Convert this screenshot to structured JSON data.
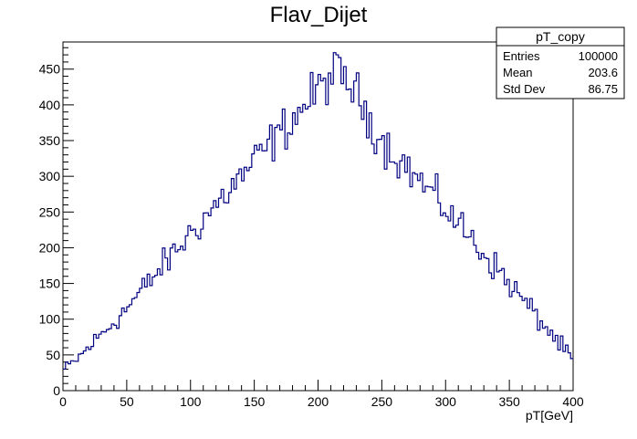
{
  "chart_data": {
    "type": "histogram",
    "title": "Flav_Dijet",
    "xlabel": "pT[GeV]",
    "ylabel": "",
    "xlim": [
      0,
      400
    ],
    "ylim": [
      0,
      488
    ],
    "bin_width": 2,
    "xticks": [
      0,
      50,
      100,
      150,
      200,
      250,
      300,
      350,
      400
    ],
    "yticks": [
      0,
      50,
      100,
      150,
      200,
      250,
      300,
      350,
      400,
      450
    ],
    "line_color": "#000080",
    "profile": {
      "description_points_x": [
        0,
        10,
        50,
        100,
        150,
        200,
        212,
        225,
        250,
        300,
        350,
        400
      ],
      "description_points_y": [
        28,
        42,
        115,
        220,
        320,
        420,
        445,
        430,
        350,
        255,
        150,
        42
      ]
    },
    "stats": {
      "name": "pT_copy",
      "rows": [
        {
          "label": "Entries",
          "value": "100000"
        },
        {
          "label": "Mean",
          "value": "203.6"
        },
        {
          "label": "Std Dev",
          "value": "86.75"
        }
      ]
    }
  }
}
